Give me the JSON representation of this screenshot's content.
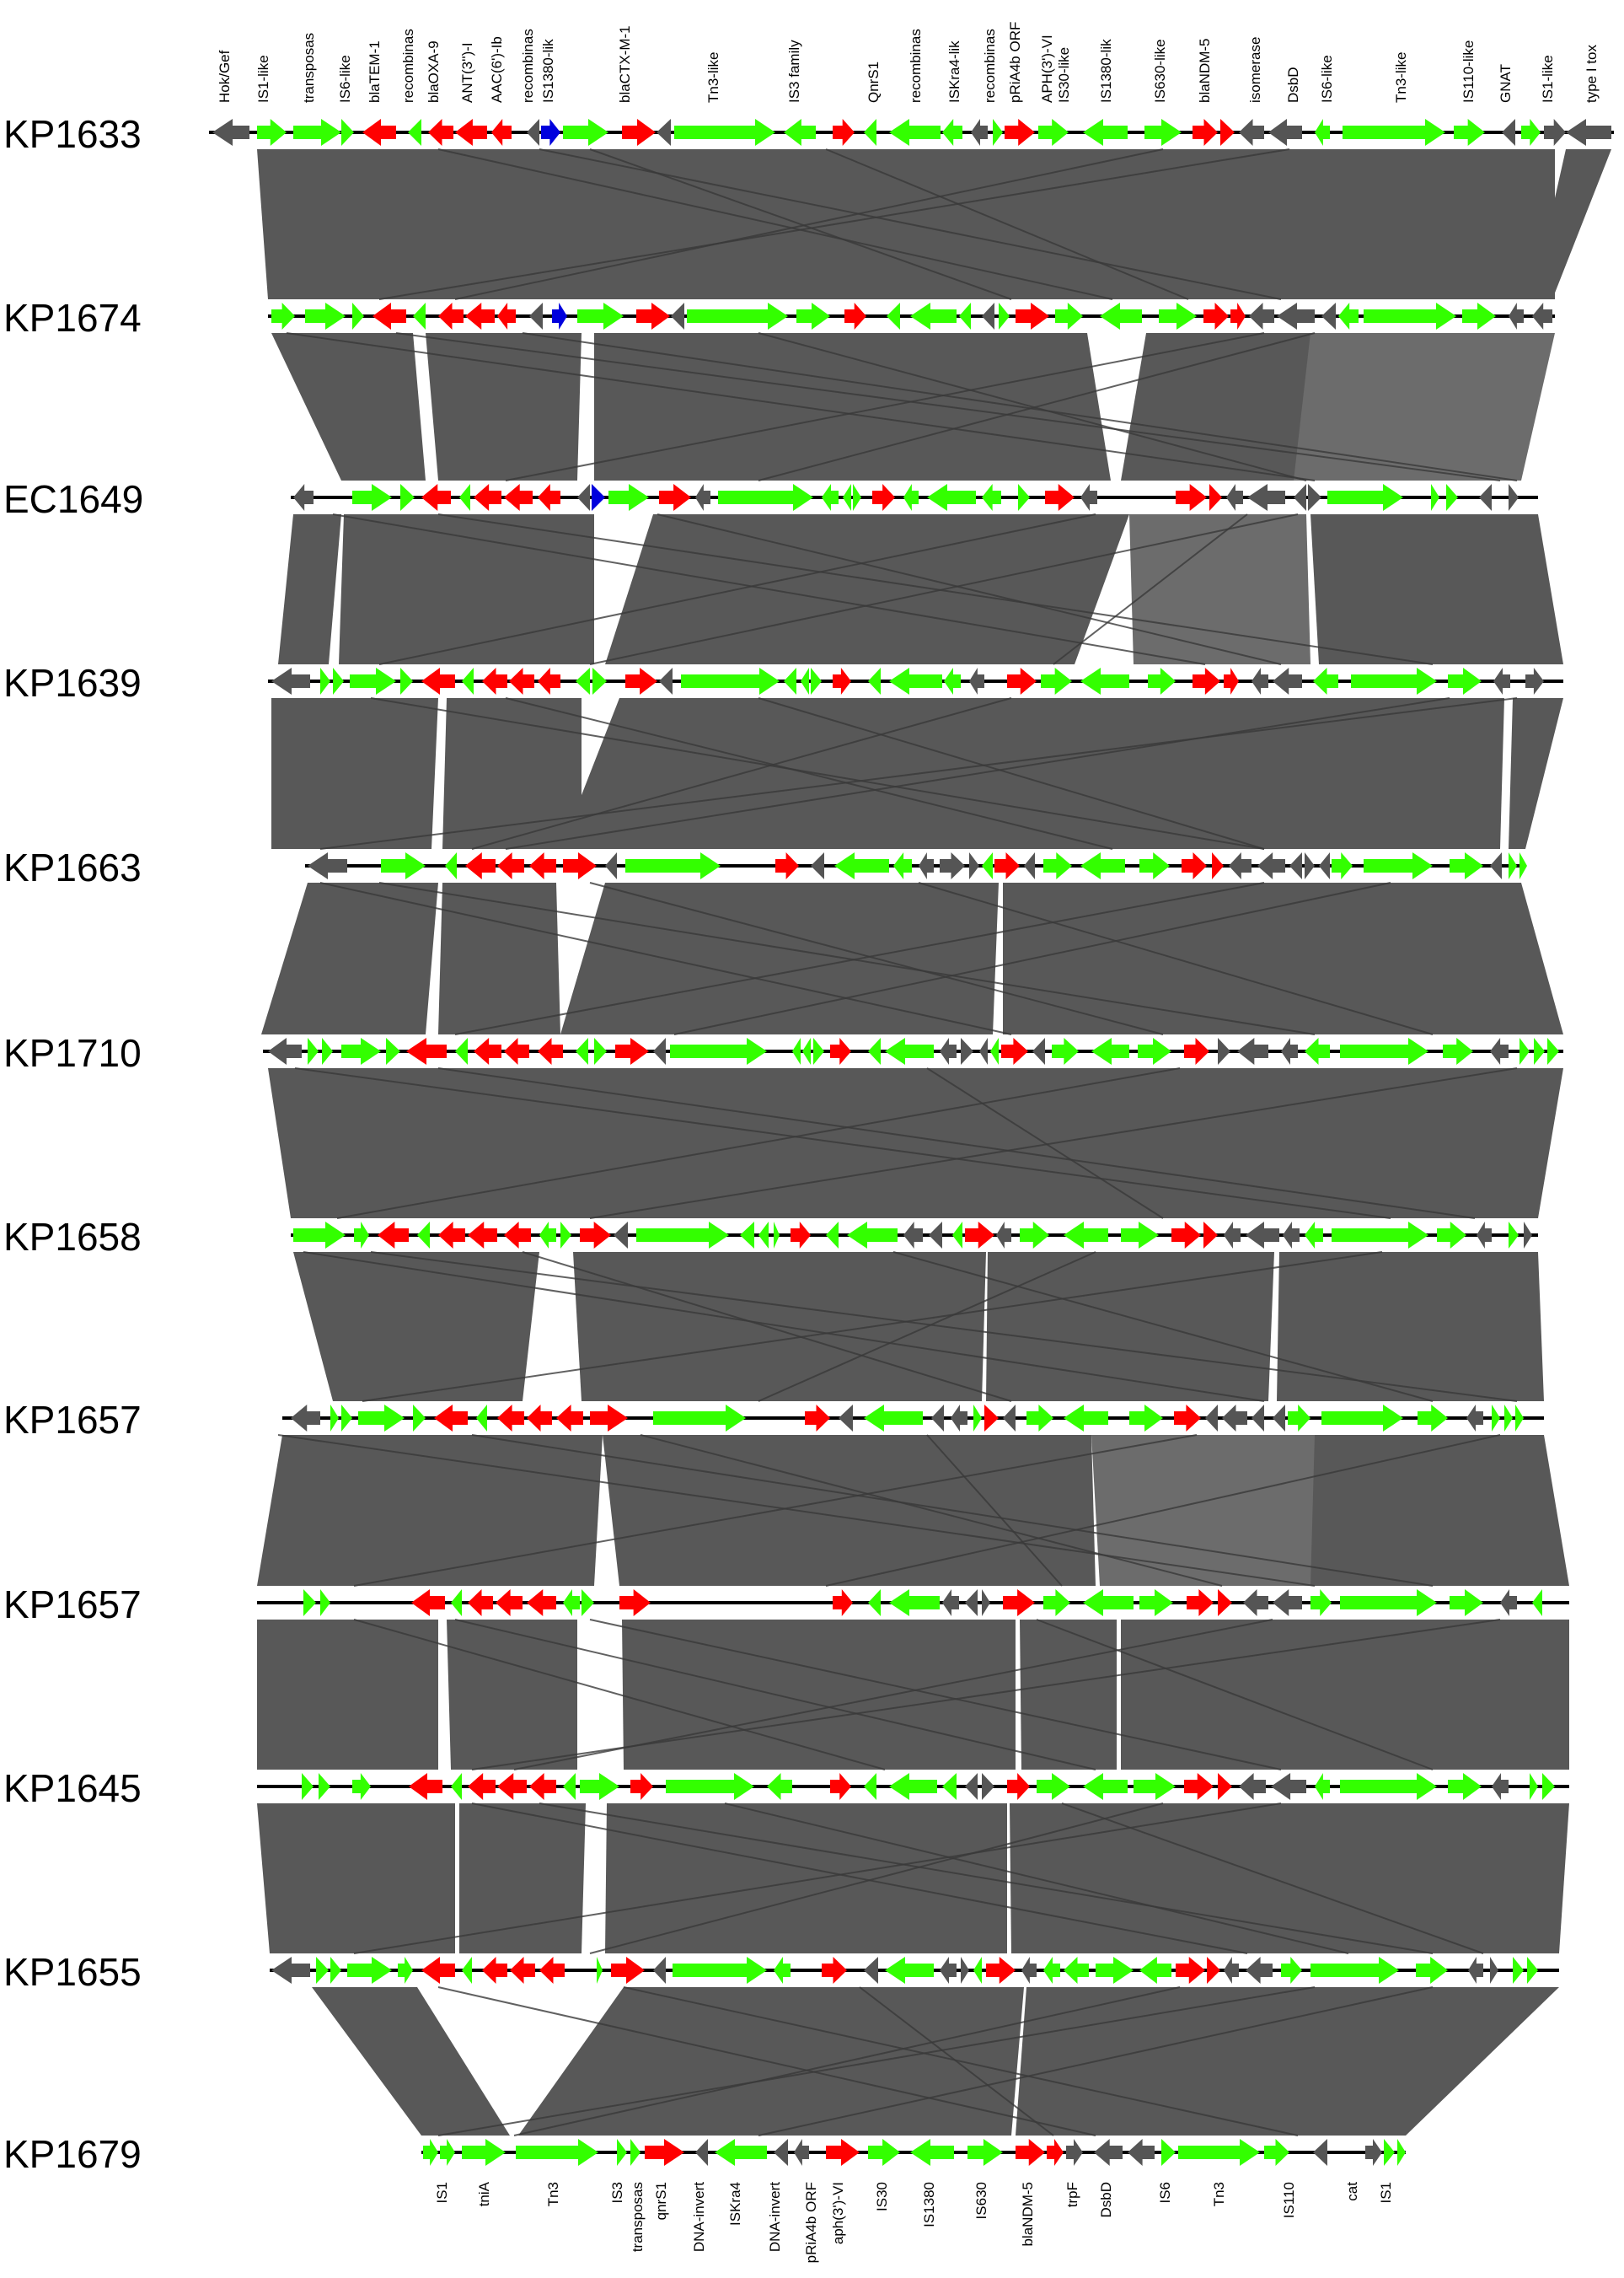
{
  "colors": {
    "mobile": "#33ff00",
    "resistance": "#ff0000",
    "other": "#555555",
    "marker": "#0000dd",
    "link": "#585858",
    "link_light": "#6c6c6c",
    "crossline": "#3a3a3a",
    "backbone": "#000000"
  },
  "top_labels": [
    "Hok/Gef",
    "IS1-like",
    "transposas",
    "IS6-like",
    "blaTEM-1",
    "recombinas",
    "blaOXA-9",
    "ANT(3'')-I",
    "AAC(6')-Ib",
    "recombinas",
    "IS1380-lik",
    "blaCTX-M-1",
    "Tn3-like",
    "IS3 family",
    "QnrS1",
    "recombinas",
    "ISKra4-lik",
    "recombinas",
    "pRiA4b ORF",
    "APH(3')-VI",
    "IS30-like",
    "IS1380-lik",
    "IS630-like",
    "blaNDM-5",
    "isomerase",
    "DsbD",
    "IS6-like",
    "Tn3-like",
    "IS110-like",
    "GNAT",
    "IS1-like",
    "type I tox"
  ],
  "bottom_labels": [
    "IS1",
    "tniA",
    "Tn3",
    "IS3",
    "transposas",
    "qnrS1",
    "DNA-invert",
    "ISKra4",
    "DNA-invert",
    "pRiA4b ORF",
    "aph(3')-VI",
    "IS30",
    "IS1380",
    "IS630",
    "blaNDM-5",
    "trpF",
    "DsbD",
    "IS6",
    "Tn3",
    "IS110",
    "cat",
    "IS1"
  ],
  "tracks": [
    {
      "name": "KP1633"
    },
    {
      "name": "KP1674"
    },
    {
      "name": "EC1649"
    },
    {
      "name": "KP1639"
    },
    {
      "name": "KP1663"
    },
    {
      "name": "KP1710"
    },
    {
      "name": "KP1658"
    },
    {
      "name": "KP1657"
    },
    {
      "name": "KP1657"
    },
    {
      "name": "KP1645"
    },
    {
      "name": "KP1655"
    },
    {
      "name": "KP1679"
    }
  ]
}
